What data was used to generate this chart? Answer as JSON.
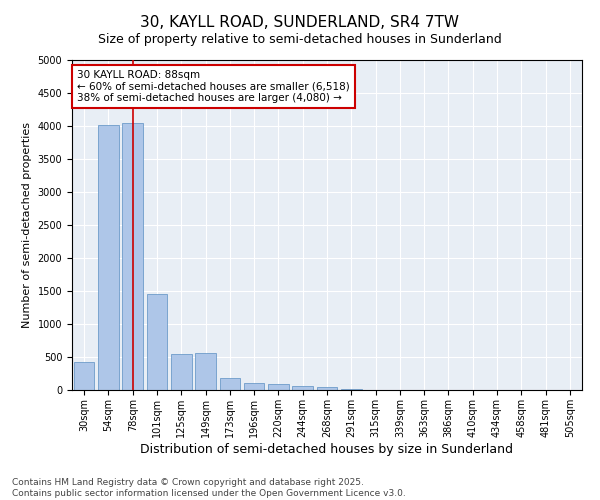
{
  "title": "30, KAYLL ROAD, SUNDERLAND, SR4 7TW",
  "subtitle": "Size of property relative to semi-detached houses in Sunderland",
  "xlabel": "Distribution of semi-detached houses by size in Sunderland",
  "ylabel": "Number of semi-detached properties",
  "categories": [
    "30sqm",
    "54sqm",
    "78sqm",
    "101sqm",
    "125sqm",
    "149sqm",
    "173sqm",
    "196sqm",
    "220sqm",
    "244sqm",
    "268sqm",
    "291sqm",
    "315sqm",
    "339sqm",
    "363sqm",
    "386sqm",
    "410sqm",
    "434sqm",
    "458sqm",
    "481sqm",
    "505sqm"
  ],
  "values": [
    430,
    4020,
    4050,
    1460,
    540,
    560,
    185,
    110,
    90,
    55,
    45,
    10,
    5,
    3,
    2,
    1,
    1,
    1,
    1,
    0,
    0
  ],
  "bar_color": "#aec6e8",
  "bar_edge_color": "#5a8fc2",
  "vline_x": 2,
  "vline_color": "#cc0000",
  "annotation_text": "30 KAYLL ROAD: 88sqm\n← 60% of semi-detached houses are smaller (6,518)\n38% of semi-detached houses are larger (4,080) →",
  "annotation_box_color": "#cc0000",
  "ylim": [
    0,
    5000
  ],
  "yticks": [
    0,
    500,
    1000,
    1500,
    2000,
    2500,
    3000,
    3500,
    4000,
    4500,
    5000
  ],
  "background_color": "#e8eef5",
  "footer_text": "Contains HM Land Registry data © Crown copyright and database right 2025.\nContains public sector information licensed under the Open Government Licence v3.0.",
  "title_fontsize": 11,
  "subtitle_fontsize": 9,
  "xlabel_fontsize": 9,
  "ylabel_fontsize": 8,
  "tick_fontsize": 7,
  "annotation_fontsize": 7.5,
  "footer_fontsize": 6.5
}
